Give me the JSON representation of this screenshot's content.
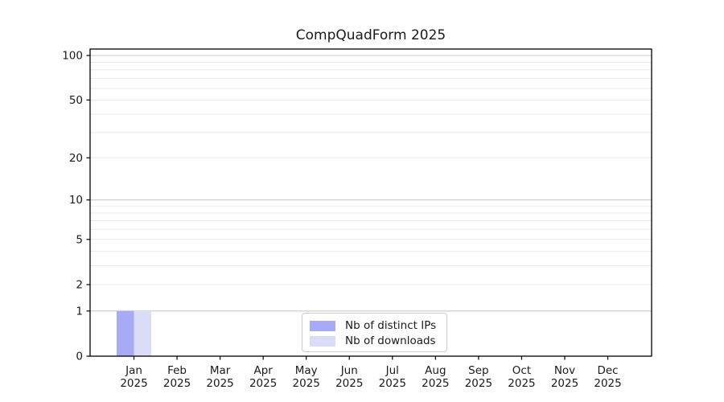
{
  "figure": {
    "background": "#ffffff"
  },
  "chart_data": {
    "type": "bar",
    "title": "CompQuadForm 2025",
    "xlabel": "",
    "ylabel": "",
    "categories": [
      "Jan 2025",
      "Feb 2025",
      "Mar 2025",
      "Apr 2025",
      "May 2025",
      "Jun 2025",
      "Jul 2025",
      "Aug 2025",
      "Sep 2025",
      "Oct 2025",
      "Nov 2025",
      "Dec 2025"
    ],
    "x_ticks": [
      {
        "line1": "Jan",
        "line2": "2025"
      },
      {
        "line1": "Feb",
        "line2": "2025"
      },
      {
        "line1": "Mar",
        "line2": "2025"
      },
      {
        "line1": "Apr",
        "line2": "2025"
      },
      {
        "line1": "May",
        "line2": "2025"
      },
      {
        "line1": "Jun",
        "line2": "2025"
      },
      {
        "line1": "Jul",
        "line2": "2025"
      },
      {
        "line1": "Aug",
        "line2": "2025"
      },
      {
        "line1": "Sep",
        "line2": "2025"
      },
      {
        "line1": "Oct",
        "line2": "2025"
      },
      {
        "line1": "Nov",
        "line2": "2025"
      },
      {
        "line1": "Dec",
        "line2": "2025"
      }
    ],
    "series": [
      {
        "name": "Nb of distinct IPs",
        "color": "#a9aaf5",
        "values": [
          1,
          0,
          0,
          0,
          0,
          0,
          0,
          0,
          0,
          0,
          0,
          0
        ]
      },
      {
        "name": "Nb of downloads",
        "color": "#dbdcf8",
        "values": [
          1,
          0,
          0,
          0,
          0,
          0,
          0,
          0,
          0,
          0,
          0,
          0
        ]
      }
    ],
    "y_axis": {
      "scale": "log1p",
      "tick_values": [
        0,
        1,
        2,
        5,
        10,
        20,
        50,
        100
      ],
      "major_gridlines": [
        1,
        10,
        100
      ],
      "minor_gridlines": [
        2,
        3,
        4,
        5,
        6,
        7,
        8,
        9,
        20,
        30,
        40,
        50,
        60,
        70,
        80,
        90
      ],
      "range": [
        0,
        110
      ]
    },
    "grid": true,
    "legend": {
      "position": "bottom-center",
      "entries": [
        "Nb of distinct IPs",
        "Nb of downloads"
      ]
    }
  },
  "style_colors": {
    "axis_spine": "#000000",
    "text": "#1a1a1a",
    "grid_major": "#c9c9c9",
    "grid_minor": "#ebebeb",
    "legend_border": "#cccccc"
  }
}
